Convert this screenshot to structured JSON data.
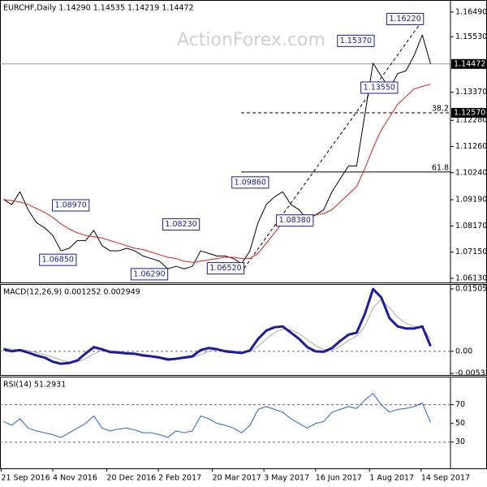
{
  "chart_data": [
    {
      "type": "line",
      "title": "EURCHF,Daily 1.14290 1.14535 1.14219 1.14472",
      "watermark": "ActionForex.com",
      "xlim": [
        "2016-09-20",
        "2017-10-09"
      ],
      "ylim": [
        1.0597,
        1.1696
      ],
      "yticks": [
        {
          "value": 1.1649,
          "label": "1.16490"
        },
        {
          "value": 1.1553,
          "label": "1.15530"
        },
        {
          "value": 1.1337,
          "label": "1.13370"
        },
        {
          "value": 1.1228,
          "label": "1.12280"
        },
        {
          "value": 1.1126,
          "label": "1.11260"
        },
        {
          "value": 1.1024,
          "label": "1.10240"
        },
        {
          "value": 1.0919,
          "label": "1.09190"
        },
        {
          "value": 1.0817,
          "label": "1.08170"
        },
        {
          "value": 1.0715,
          "label": "1.07150"
        },
        {
          "value": 1.0613,
          "label": "1.06130"
        }
      ],
      "x": [
        "2016-09-23",
        "2016-09-30",
        "2016-10-07",
        "2016-10-14",
        "2016-10-21",
        "2016-10-28",
        "2016-11-04",
        "2016-11-11",
        "2016-11-18",
        "2016-11-25",
        "2016-12-02",
        "2016-12-09",
        "2016-12-16",
        "2016-12-23",
        "2016-12-30",
        "2017-01-06",
        "2017-01-13",
        "2017-01-20",
        "2017-01-27",
        "2017-02-03",
        "2017-02-10",
        "2017-02-17",
        "2017-02-24",
        "2017-03-03",
        "2017-03-10",
        "2017-03-17",
        "2017-03-24",
        "2017-03-31",
        "2017-04-07",
        "2017-04-14",
        "2017-04-21",
        "2017-04-28",
        "2017-05-05",
        "2017-05-12",
        "2017-05-19",
        "2017-05-26",
        "2017-06-02",
        "2017-06-09",
        "2017-06-16",
        "2017-06-23",
        "2017-06-30",
        "2017-07-07",
        "2017-07-14",
        "2017-07-21",
        "2017-07-28",
        "2017-08-04",
        "2017-08-11",
        "2017-08-18",
        "2017-08-25",
        "2017-09-01",
        "2017-09-08",
        "2017-09-15",
        "2017-09-22"
      ],
      "series": [
        {
          "color": "#000000",
          "width": 1,
          "values": [
            1.092,
            1.09,
            1.095,
            1.088,
            1.083,
            1.081,
            1.078,
            1.072,
            1.073,
            1.076,
            1.076,
            1.08,
            1.074,
            1.072,
            1.072,
            1.073,
            1.072,
            1.07,
            1.069,
            1.068,
            1.065,
            1.066,
            1.065,
            1.066,
            1.072,
            1.071,
            1.07,
            1.07,
            1.069,
            1.067,
            1.072,
            1.083,
            1.09,
            1.093,
            1.095,
            1.09,
            1.088,
            1.084,
            1.086,
            1.088,
            1.095,
            1.1,
            1.105,
            1.105,
            1.125,
            1.145,
            1.14,
            1.135,
            1.141,
            1.142,
            1.148,
            1.156,
            1.14472
          ]
        },
        {
          "color": "#e0201c",
          "width": 1,
          "values": [
            1.092,
            1.0915,
            1.091,
            1.09,
            1.0885,
            1.087,
            1.085,
            1.0825,
            1.0805,
            1.079,
            1.078,
            1.0775,
            1.077,
            1.076,
            1.075,
            1.074,
            1.073,
            1.0725,
            1.0715,
            1.0705,
            1.0695,
            1.069,
            1.068,
            1.0675,
            1.068,
            1.0685,
            1.069,
            1.0695,
            1.0695,
            1.069,
            1.069,
            1.071,
            1.075,
            1.079,
            1.083,
            1.085,
            1.086,
            1.086,
            1.086,
            1.0865,
            1.088,
            1.091,
            1.094,
            1.097,
            1.104,
            1.112,
            1.119,
            1.124,
            1.129,
            1.132,
            1.135,
            1.136,
            1.1368
          ]
        }
      ],
      "last_price": {
        "value": 1.14472,
        "label": "1.14472"
      },
      "fib_levels": [
        {
          "value": 1.1257,
          "label": "38.2",
          "value_label": "1.12570",
          "dashed": true
        },
        {
          "value": 1.1027,
          "label": "61.8",
          "dashed": false
        }
      ],
      "trendline": {
        "x": [
          "2017-04-16",
          "2017-09-16"
        ],
        "y": [
          1.0652,
          1.1622
        ]
      },
      "annotations": [
        {
          "x": "2017-09-16",
          "value": 1.1622,
          "label": "1.16220"
        },
        {
          "x": "2017-08-05",
          "value": 1.1537,
          "label": "1.15370"
        },
        {
          "x": "2017-08-25",
          "value": 1.1355,
          "label": "1.13550"
        },
        {
          "x": "2017-05-07",
          "value": 1.0986,
          "label": "1.09860"
        },
        {
          "x": "2016-12-05",
          "value": 1.0897,
          "label": "1.08970"
        },
        {
          "x": "2017-03-09",
          "value": 1.0823,
          "label": "1.08230"
        },
        {
          "x": "2017-06-14",
          "value": 1.0838,
          "label": "1.08380"
        },
        {
          "x": "2016-11-24",
          "value": 1.0685,
          "label": "1.06850"
        },
        {
          "x": "2017-02-10",
          "value": 1.0629,
          "label": "1.06290"
        },
        {
          "x": "2017-04-16",
          "value": 1.0652,
          "label": "1.06520"
        }
      ]
    },
    {
      "type": "line",
      "title": "MACD(12,26,9) 0.001252 0.002949",
      "xlim": [
        "2016-09-20",
        "2017-10-09"
      ],
      "ylim": [
        -0.0057,
        0.0162
      ],
      "yticks": [
        0.015052,
        {
          "value": 0,
          "label": "0.00"
        },
        -0.005321
      ],
      "levels": [
        0
      ],
      "x": [
        "2016-09-23",
        "2016-09-30",
        "2016-10-07",
        "2016-10-14",
        "2016-10-21",
        "2016-10-28",
        "2016-11-04",
        "2016-11-11",
        "2016-11-18",
        "2016-11-25",
        "2016-12-02",
        "2016-12-09",
        "2016-12-16",
        "2016-12-23",
        "2016-12-30",
        "2017-01-06",
        "2017-01-13",
        "2017-01-20",
        "2017-01-27",
        "2017-02-03",
        "2017-02-10",
        "2017-02-17",
        "2017-02-24",
        "2017-03-03",
        "2017-03-10",
        "2017-03-17",
        "2017-03-24",
        "2017-03-31",
        "2017-04-07",
        "2017-04-14",
        "2017-04-21",
        "2017-04-28",
        "2017-05-05",
        "2017-05-12",
        "2017-05-19",
        "2017-05-26",
        "2017-06-02",
        "2017-06-09",
        "2017-06-16",
        "2017-06-23",
        "2017-06-30",
        "2017-07-07",
        "2017-07-14",
        "2017-07-21",
        "2017-07-28",
        "2017-08-04",
        "2017-08-11",
        "2017-08-18",
        "2017-08-25",
        "2017-09-01",
        "2017-09-08",
        "2017-09-15",
        "2017-09-22"
      ],
      "series": [
        {
          "color": "#aaaaaa",
          "width": 1,
          "values": [
            0.0008,
            0.0005,
            0.0004,
            0.0002,
            -0.0003,
            -0.0008,
            -0.0014,
            -0.0021,
            -0.0026,
            -0.0025,
            -0.0018,
            -0.0006,
            0.0002,
            0.0002,
            0.0,
            -0.0003,
            -0.0005,
            -0.0007,
            -0.001,
            -0.0013,
            -0.0016,
            -0.0018,
            -0.0017,
            -0.0015,
            -0.0008,
            0.0,
            0.0004,
            0.0003,
            0.0001,
            -0.0002,
            -0.0001,
            0.0012,
            0.003,
            0.0045,
            0.0054,
            0.0052,
            0.0043,
            0.0028,
            0.0014,
            0.0004,
            0.0003,
            0.0012,
            0.0026,
            0.0037,
            0.006,
            0.0105,
            0.0125,
            0.0105,
            0.0082,
            0.0067,
            0.006,
            0.0058,
            0.002949
          ]
        },
        {
          "color": "#1c1c9c",
          "width": 3,
          "values": [
            0.0005,
            0.0,
            0.0003,
            -0.0003,
            -0.001,
            -0.0015,
            -0.0025,
            -0.003,
            -0.0028,
            -0.0022,
            -0.0005,
            0.001,
            0.0005,
            -0.0002,
            -0.0003,
            -0.0005,
            -0.0006,
            -0.001,
            -0.0012,
            -0.0015,
            -0.002,
            -0.0018,
            -0.0015,
            -0.0012,
            0.0003,
            0.0008,
            0.0005,
            0.0,
            -0.0002,
            -0.0004,
            0.0002,
            0.003,
            0.005,
            0.0058,
            0.006,
            0.0045,
            0.003,
            0.001,
            0.0,
            -0.0001,
            0.0008,
            0.0025,
            0.004,
            0.0045,
            0.009,
            0.015,
            0.013,
            0.008,
            0.006,
            0.0055,
            0.0055,
            0.006,
            0.001252
          ]
        }
      ]
    },
    {
      "type": "line",
      "title": "RSI(14) 51.2931",
      "xlim": [
        "2016-09-20",
        "2017-10-09"
      ],
      "ylim": [
        2,
        100
      ],
      "yticks": [
        70,
        50,
        30
      ],
      "levels": [
        70,
        30
      ],
      "xticks": [
        {
          "value": "2016-09-21",
          "label": "21 Sep 2016"
        },
        {
          "value": "2016-11-04",
          "label": "4 Nov 2016"
        },
        {
          "value": "2016-12-20",
          "label": "20 Dec 2016"
        },
        {
          "value": "2017-02-02",
          "label": "2 Feb 2017"
        },
        {
          "value": "2017-03-20",
          "label": "20 Mar 2017"
        },
        {
          "value": "2017-05-03",
          "label": "3 May 2017"
        },
        {
          "value": "2017-06-16",
          "label": "16 Jun 2017"
        },
        {
          "value": "2017-08-01",
          "label": "1 Aug 2017"
        },
        {
          "value": "2017-09-14",
          "label": "14 Sep 2017"
        }
      ],
      "x": [
        "2016-09-23",
        "2016-09-30",
        "2016-10-07",
        "2016-10-14",
        "2016-10-21",
        "2016-10-28",
        "2016-11-04",
        "2016-11-11",
        "2016-11-18",
        "2016-11-25",
        "2016-12-02",
        "2016-12-09",
        "2016-12-16",
        "2016-12-23",
        "2016-12-30",
        "2017-01-06",
        "2017-01-13",
        "2017-01-20",
        "2017-01-27",
        "2017-02-03",
        "2017-02-10",
        "2017-02-17",
        "2017-02-24",
        "2017-03-03",
        "2017-03-10",
        "2017-03-17",
        "2017-03-24",
        "2017-03-31",
        "2017-04-07",
        "2017-04-14",
        "2017-04-21",
        "2017-04-28",
        "2017-05-05",
        "2017-05-12",
        "2017-05-19",
        "2017-05-26",
        "2017-06-02",
        "2017-06-09",
        "2017-06-16",
        "2017-06-23",
        "2017-06-30",
        "2017-07-07",
        "2017-07-14",
        "2017-07-21",
        "2017-07-28",
        "2017-08-04",
        "2017-08-11",
        "2017-08-18",
        "2017-08-25",
        "2017-09-01",
        "2017-09-08",
        "2017-09-15",
        "2017-09-22"
      ],
      "series": [
        {
          "color": "#2b5fd0",
          "width": 1,
          "values": [
            52,
            48,
            55,
            45,
            42,
            40,
            38,
            35,
            40,
            45,
            50,
            58,
            45,
            42,
            44,
            45,
            43,
            40,
            40,
            38,
            35,
            42,
            40,
            42,
            58,
            55,
            50,
            48,
            45,
            40,
            48,
            65,
            68,
            65,
            62,
            55,
            50,
            45,
            50,
            52,
            62,
            65,
            68,
            66,
            75,
            82,
            70,
            62,
            65,
            66,
            68,
            72,
            51.2931
          ]
        }
      ]
    }
  ]
}
